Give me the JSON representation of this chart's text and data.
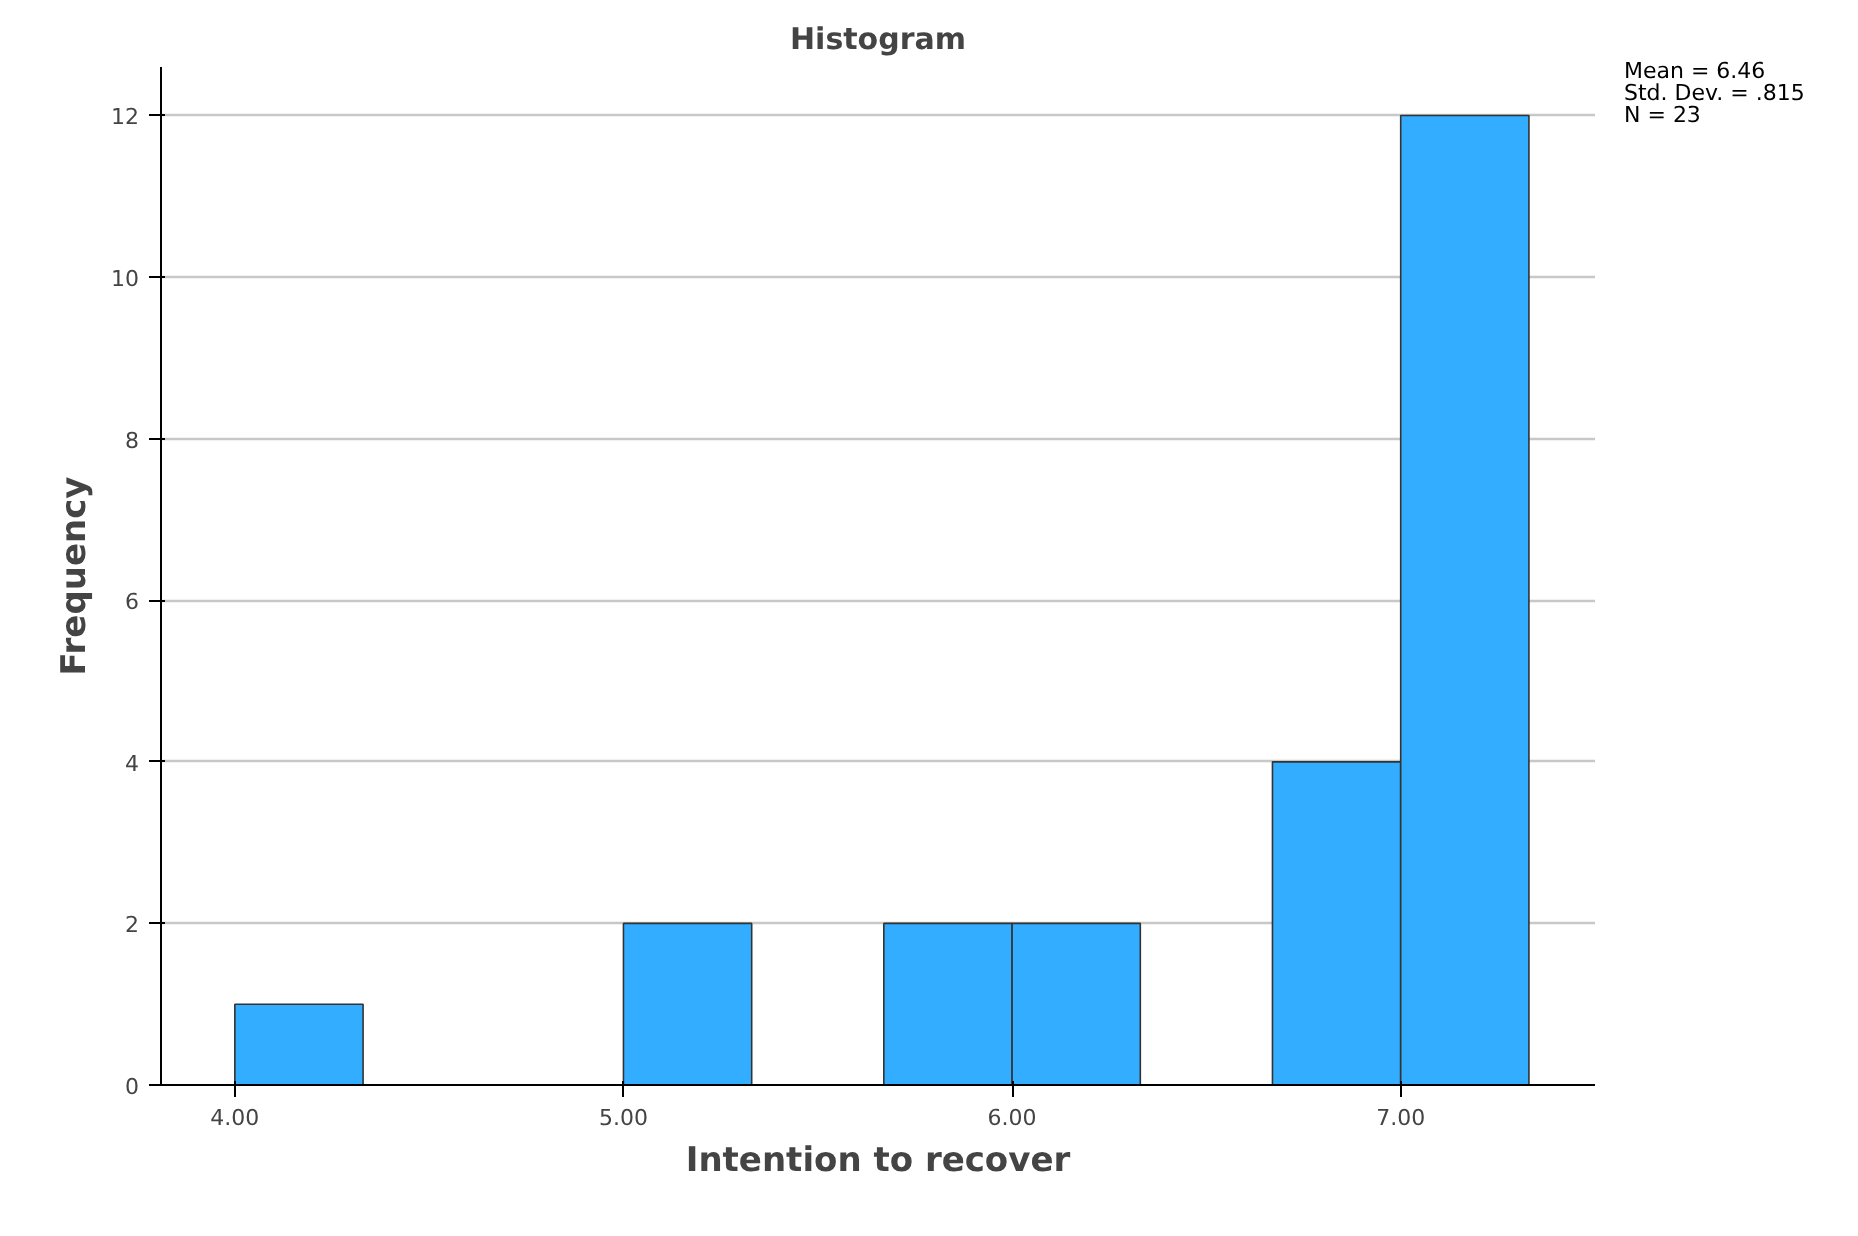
{
  "chart_data": {
    "type": "histogram",
    "title": "Histogram",
    "xlabel": "Intention to recover",
    "ylabel": "Frequency",
    "bins": [
      4.0,
      4.33,
      5.0,
      5.33,
      5.67,
      6.0,
      6.33,
      6.67,
      7.0,
      7.33
    ],
    "values": [
      1,
      0,
      2,
      0,
      2,
      2,
      0,
      4,
      12
    ],
    "color": "#33adff",
    "xlim": [
      3.81,
      7.5
    ],
    "xticks": [
      {
        "value": 4,
        "label": "4.00"
      },
      {
        "value": 5,
        "label": "5.00"
      },
      {
        "value": 6,
        "label": "6.00"
      },
      {
        "value": 7,
        "label": "7.00"
      }
    ],
    "ylim": [
      0,
      12.6
    ],
    "yticks": [
      0,
      2,
      4,
      6,
      8,
      10,
      12
    ],
    "grid": "y",
    "annotations": [
      "Mean = 6.46",
      "Std. Dev. = .815",
      "N = 23"
    ]
  }
}
